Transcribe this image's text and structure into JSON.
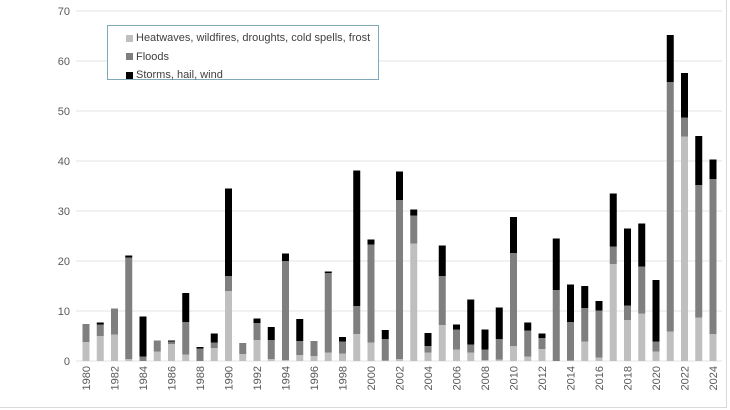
{
  "chart_data": {
    "type": "bar",
    "stacked": true,
    "title": "",
    "xlabel": "",
    "ylabel": "",
    "ylim": [
      0,
      70
    ],
    "yticks": [
      0,
      10,
      20,
      30,
      40,
      50,
      60,
      70
    ],
    "grid": true,
    "legend_position": "top-left",
    "categories": [
      1980,
      1981,
      1982,
      1983,
      1984,
      1985,
      1986,
      1987,
      1988,
      1989,
      1990,
      1991,
      1992,
      1993,
      1994,
      1995,
      1996,
      1997,
      1998,
      1999,
      2000,
      2001,
      2002,
      2003,
      2004,
      2005,
      2006,
      2007,
      2008,
      2009,
      2010,
      2011,
      2012,
      2013,
      2014,
      2015,
      2016,
      2017,
      2018,
      2019,
      2020,
      2021,
      2022,
      2023,
      2024
    ],
    "xtick_labels": [
      "1980",
      "1982",
      "1984",
      "1986",
      "1988",
      "1990",
      "1992",
      "1994",
      "1996",
      "1998",
      "2000",
      "2002",
      "2004",
      "2006",
      "2008",
      "2010",
      "2012",
      "2014",
      "2016",
      "2018",
      "2020",
      "2022",
      "2024"
    ],
    "series": [
      {
        "name": "Heatwaves, wildfires, droughts, cold spells, frost",
        "color": "#bfbfbf",
        "values": [
          3.8,
          5.0,
          5.3,
          0.4,
          0,
          1.9,
          3.4,
          1.3,
          0,
          2.6,
          14.0,
          1.4,
          4.2,
          0.4,
          0.2,
          1.2,
          1.0,
          1.7,
          1.5,
          5.4,
          3.7,
          0.1,
          0.4,
          23.5,
          1.7,
          7.2,
          2.3,
          1.7,
          0.2,
          0.3,
          3.0,
          0.9,
          2.4,
          0,
          0.1,
          3.9,
          0.7,
          19.4,
          8.2,
          9.5,
          1.9,
          5.9,
          44.9,
          8.7,
          5.4
        ]
      },
      {
        "name": "Floods",
        "color": "#7f7f7f",
        "values": [
          3.6,
          2.3,
          5.2,
          20.3,
          0.9,
          2.2,
          0.5,
          6.5,
          2.5,
          1.1,
          3.0,
          2.2,
          3.4,
          3.8,
          19.8,
          2.8,
          3.0,
          15.9,
          2.4,
          5.6,
          19.6,
          4.3,
          31.8,
          5.6,
          1.3,
          9.8,
          4.0,
          1.6,
          2.1,
          4.1,
          18.6,
          5.2,
          2.2,
          14.2,
          7.7,
          6.7,
          9.4,
          3.5,
          2.9,
          9.4,
          2.0,
          49.9,
          3.8,
          26.5,
          31.0
        ]
      },
      {
        "name": "Storms, hail, wind",
        "color": "#000000",
        "values": [
          0,
          0.4,
          0,
          0.4,
          8.0,
          0,
          0.2,
          5.8,
          0.3,
          1.8,
          17.5,
          0,
          0.9,
          2.6,
          1.5,
          4.4,
          0,
          0.3,
          0.9,
          27.1,
          1.0,
          1.8,
          5.7,
          1.2,
          2.6,
          6.1,
          1.0,
          9.0,
          4.0,
          6.3,
          7.2,
          1.6,
          0.9,
          10.3,
          7.5,
          4.4,
          1.9,
          10.6,
          15.4,
          8.6,
          12.3,
          9.4,
          8.9,
          9.8,
          3.9
        ]
      }
    ]
  }
}
